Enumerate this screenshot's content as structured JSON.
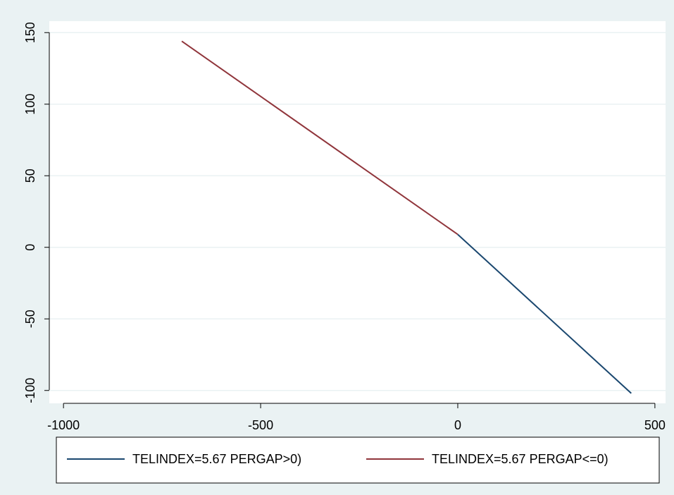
{
  "chart_data": {
    "type": "line",
    "series": [
      {
        "name": "TELINDEX=5.67 PERGAP>0)",
        "color": "#1a476f",
        "x": [
          0,
          440
        ],
        "values": [
          9,
          -102
        ]
      },
      {
        "name": "TELINDEX=5.67 PERGAP<=0)",
        "color": "#90353b",
        "x": [
          -700,
          0
        ],
        "values": [
          144,
          9
        ]
      }
    ],
    "xlim": [
      -1036,
      527
    ],
    "xticks": [
      -1000,
      -500,
      0,
      500
    ],
    "ylim": [
      -109,
      158
    ],
    "yticks": [
      -100,
      -50,
      0,
      50,
      100,
      150
    ],
    "grid": true,
    "legend": "bottom"
  }
}
